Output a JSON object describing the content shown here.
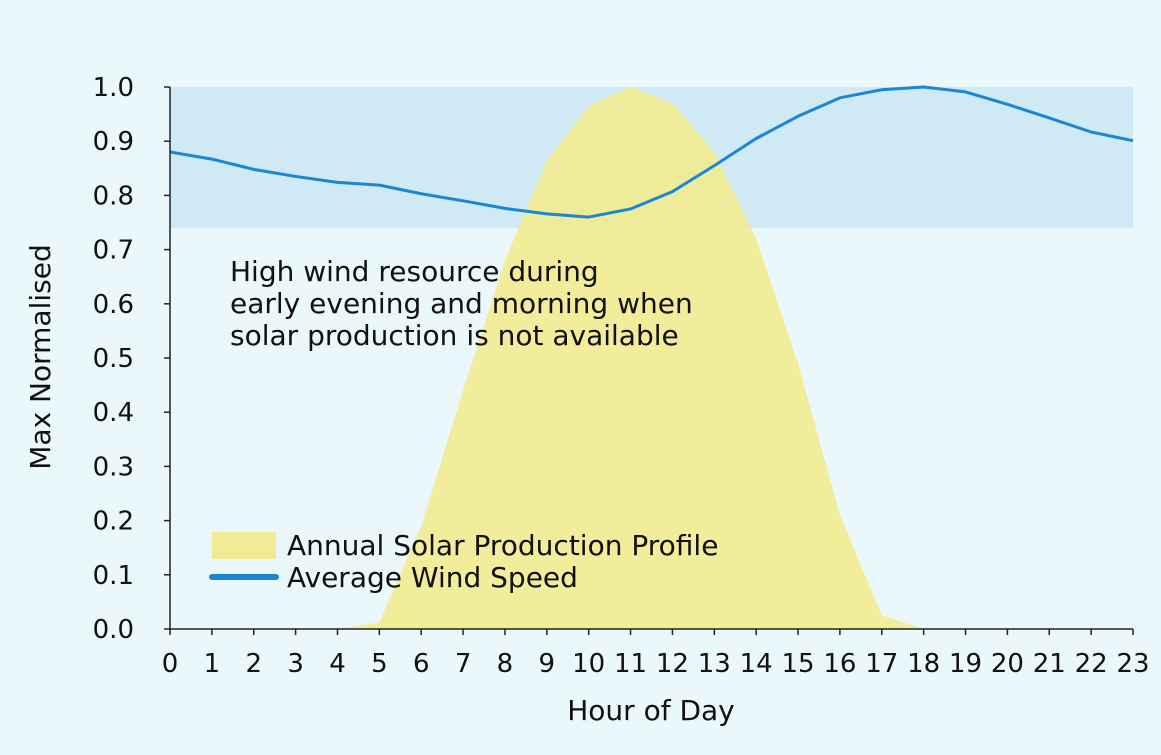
{
  "colors": {
    "background": "#eaf7fb",
    "solar_fill": "#f1ec93",
    "wind_line": "#1a86d4",
    "high_band": "#cfe9f5",
    "axis": "#222222"
  },
  "annotation": {
    "lines": [
      "High wind resource during",
      "early evening and morning when",
      "solar production is not available"
    ]
  },
  "legend": {
    "solar_label": "Annual Solar Production Profile",
    "wind_label": "Average Wind Speed"
  },
  "chart_data": {
    "type": "area",
    "title": "",
    "xlabel": "Hour of Day",
    "ylabel": "Max Normalised",
    "x": [
      0,
      1,
      2,
      3,
      4,
      5,
      6,
      7,
      8,
      9,
      10,
      11,
      12,
      13,
      14,
      15,
      16,
      17,
      18,
      19,
      20,
      21,
      22,
      23
    ],
    "xlim": [
      0,
      23
    ],
    "ylim": [
      0,
      1
    ],
    "xticks": [
      "0",
      "1",
      "2",
      "3",
      "4",
      "5",
      "6",
      "7",
      "8",
      "9",
      "10",
      "11",
      "12",
      "13",
      "14",
      "15",
      "16",
      "17",
      "18",
      "19",
      "20",
      "21",
      "22",
      "23"
    ],
    "yticks": [
      "0.0",
      "0.1",
      "0.2",
      "0.3",
      "0.4",
      "0.5",
      "0.6",
      "0.7",
      "0.8",
      "0.9",
      "1.0"
    ],
    "shaded_band": {
      "y_from": 0.74,
      "y_to": 1.0
    },
    "series": [
      {
        "name": "Annual Solar Production Profile",
        "kind": "area",
        "values": [
          0,
          0,
          0,
          0,
          0.0,
          0.012,
          0.19,
          0.44,
          0.68,
          0.865,
          0.965,
          1.0,
          0.97,
          0.88,
          0.72,
          0.49,
          0.21,
          0.025,
          0.0,
          0,
          0,
          0,
          0,
          0
        ]
      },
      {
        "name": "Average Wind Speed",
        "kind": "line",
        "values": [
          0.88,
          0.867,
          0.848,
          0.835,
          0.824,
          0.819,
          0.803,
          0.79,
          0.776,
          0.766,
          0.76,
          0.775,
          0.807,
          0.855,
          0.905,
          0.946,
          0.98,
          0.995,
          1.0,
          0.991,
          0.968,
          0.943,
          0.917,
          0.901
        ]
      }
    ],
    "legend_position": "bottom-left"
  }
}
